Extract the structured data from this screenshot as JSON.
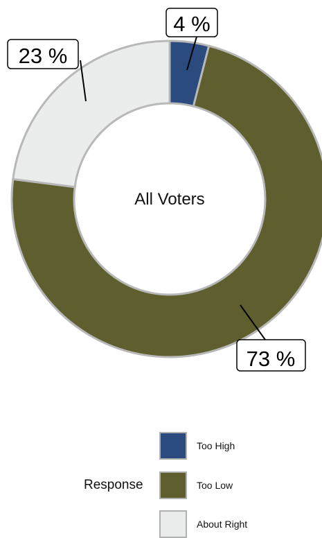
{
  "chart_data": {
    "type": "pie",
    "center_label": "All Voters",
    "legend_title": "Response",
    "legend_position": "bottom-right",
    "categories": [
      "Too High",
      "Too Low",
      "About Right"
    ],
    "values": [
      4,
      73,
      23
    ],
    "labels": [
      "4 %",
      "73 %",
      "23 %"
    ],
    "colors": [
      "#2b4b7e",
      "#5e5e2f",
      "#ebecec"
    ],
    "stroke_color": "#b8b8b8"
  },
  "legend": {
    "title": "Response",
    "items": [
      {
        "label": "Too High",
        "color": "#2b4b7e"
      },
      {
        "label": "Too Low",
        "color": "#5e5e2f"
      },
      {
        "label": "About Right",
        "color": "#ebecec"
      }
    ]
  }
}
